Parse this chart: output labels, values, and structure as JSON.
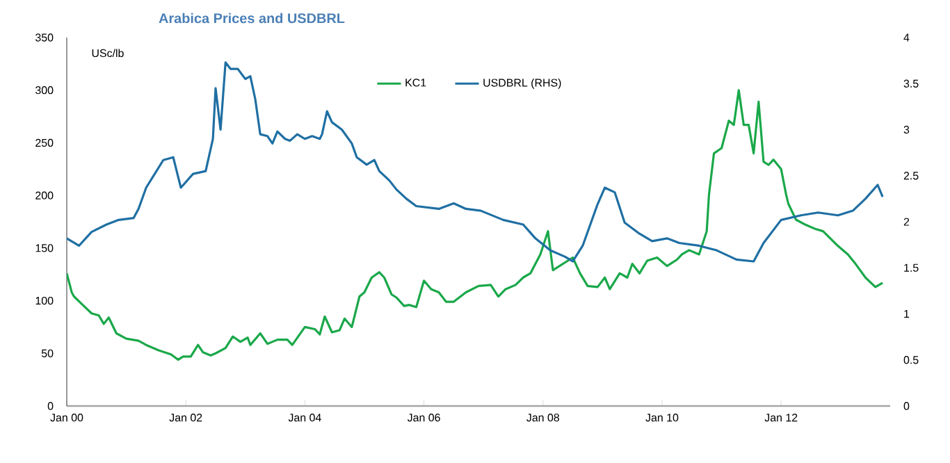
{
  "chart_data": {
    "type": "line",
    "title": "Arabica Prices and USDBRL",
    "ylabel": "USc/lb",
    "legend": "top",
    "xlim": [
      "2000-01-01",
      "2013-10-31"
    ],
    "xticks": [
      {
        "value": "2000-01",
        "label": "Jan 00"
      },
      {
        "value": "2002-01",
        "label": "Jan 02"
      },
      {
        "value": "2004-01",
        "label": "Jan 04"
      },
      {
        "value": "2006-01",
        "label": "Jan 06"
      },
      {
        "value": "2008-01",
        "label": "Jan 08"
      },
      {
        "value": "2010-01",
        "label": "Jan 10"
      },
      {
        "value": "2012-01",
        "label": "Jan 12"
      }
    ],
    "ylim": [
      0,
      350
    ],
    "yticks": [
      0,
      50,
      100,
      150,
      200,
      250,
      300,
      350
    ],
    "y2lim": [
      0,
      4
    ],
    "y2ticks": [
      0,
      0.5,
      1,
      1.5,
      2,
      2.5,
      3,
      3.5,
      4
    ],
    "series": [
      {
        "name": "KC1",
        "color": "#1aa84a",
        "x": [
          "2000-01-01",
          "2000-02-01",
          "2000-02-15",
          "2000-04-01",
          "2000-06-01",
          "2000-07-15",
          "2000-08-15",
          "2000-09-15",
          "2000-11-01",
          "2001-01-01",
          "2001-03-15",
          "2001-05-01",
          "2001-07-15",
          "2001-10-01",
          "2001-11-15",
          "2001-12-15",
          "2002-02-01",
          "2002-03-15",
          "2002-04-15",
          "2002-06-01",
          "2002-07-01",
          "2002-09-01",
          "2002-10-15",
          "2002-12-01",
          "2003-01-15",
          "2003-02-01",
          "2003-04-01",
          "2003-05-15",
          "2003-07-15",
          "2003-09-15",
          "2003-10-15",
          "2004-01-01",
          "2004-03-01",
          "2004-04-01",
          "2004-05-01",
          "2004-06-15",
          "2004-08-01",
          "2004-09-01",
          "2004-10-15",
          "2004-12-01",
          "2005-01-01",
          "2005-02-15",
          "2005-04-01",
          "2005-05-01",
          "2005-06-15",
          "2005-07-15",
          "2005-09-01",
          "2005-10-01",
          "2005-11-15",
          "2006-01-01",
          "2006-02-15",
          "2006-04-01",
          "2006-05-15",
          "2006-07-01",
          "2006-09-15",
          "2006-12-01",
          "2007-02-15",
          "2007-04-01",
          "2007-05-15",
          "2007-07-15",
          "2007-09-01",
          "2007-10-15",
          "2007-12-15",
          "2008-02-01",
          "2008-03-01",
          "2008-05-01",
          "2008-07-01",
          "2008-08-15",
          "2008-10-01",
          "2008-12-01",
          "2009-01-15",
          "2009-02-15",
          "2009-04-15",
          "2009-06-01",
          "2009-07-01",
          "2009-08-15",
          "2009-10-01",
          "2009-12-01",
          "2010-02-01",
          "2010-04-01",
          "2010-05-01",
          "2010-06-15",
          "2010-08-15",
          "2010-10-01",
          "2010-10-15",
          "2010-11-15",
          "2011-01-01",
          "2011-02-15",
          "2011-03-15",
          "2011-04-15",
          "2011-05-15",
          "2011-06-15",
          "2011-07-15",
          "2011-08-15",
          "2011-09-15",
          "2011-10-15",
          "2011-11-15",
          "2012-01-01",
          "2012-02-01",
          "2012-02-15",
          "2012-04-01",
          "2012-06-01",
          "2012-08-01",
          "2012-09-15",
          "2012-12-15",
          "2013-02-15",
          "2013-04-01",
          "2013-06-01",
          "2013-08-01",
          "2013-09-15"
        ],
        "values": [
          126,
          108,
          104,
          97,
          88,
          86,
          78,
          84,
          69,
          64,
          62,
          58,
          53,
          49,
          44,
          47,
          47,
          58,
          51,
          48,
          50,
          55,
          66,
          61,
          65,
          58,
          69,
          59,
          63,
          63,
          58,
          75,
          73,
          68,
          85,
          70,
          72,
          83,
          75,
          104,
          108,
          122,
          127,
          122,
          106,
          103,
          95,
          96,
          94,
          119,
          111,
          108,
          99,
          99,
          108,
          114,
          115,
          104,
          111,
          115,
          122,
          126,
          144,
          166,
          129,
          135,
          141,
          126,
          114,
          113,
          122,
          111,
          126,
          122,
          135,
          126,
          138,
          141,
          133,
          139,
          144,
          148,
          144,
          166,
          201,
          240,
          245,
          271,
          267,
          300,
          267,
          267,
          240,
          289,
          232,
          229,
          234,
          225,
          201,
          192,
          177,
          172,
          168,
          166,
          152,
          144,
          135,
          122,
          113,
          117
        ]
      },
      {
        "name": "USDBRL (RHS)",
        "color": "#1f6fa3",
        "axis": "y2",
        "x": [
          "2000-01-01",
          "2000-03-15",
          "2000-06-01",
          "2000-09-01",
          "2000-11-15",
          "2001-02-15",
          "2001-03-15",
          "2001-05-01",
          "2001-08-15",
          "2001-10-15",
          "2001-12-01",
          "2002-02-15",
          "2002-05-01",
          "2002-06-15",
          "2002-07-01",
          "2002-08-01",
          "2002-09-01",
          "2002-10-01",
          "2002-11-15",
          "2003-01-01",
          "2003-02-01",
          "2003-03-01",
          "2003-04-01",
          "2003-05-15",
          "2003-06-15",
          "2003-07-15",
          "2003-09-01",
          "2003-10-01",
          "2003-11-15",
          "2004-01-01",
          "2004-02-15",
          "2004-04-01",
          "2004-04-15",
          "2004-05-15",
          "2004-06-15",
          "2004-08-15",
          "2004-10-15",
          "2004-11-15",
          "2005-01-15",
          "2005-03-01",
          "2005-04-01",
          "2005-06-01",
          "2005-07-15",
          "2005-09-15",
          "2005-11-15",
          "2006-04-01",
          "2006-07-01",
          "2006-09-15",
          "2006-12-15",
          "2007-05-01",
          "2007-09-01",
          "2007-11-15",
          "2008-02-15",
          "2008-05-15",
          "2008-07-01",
          "2008-09-01",
          "2008-12-01",
          "2009-01-15",
          "2009-03-15",
          "2009-05-15",
          "2009-08-15",
          "2009-11-01",
          "2010-02-01",
          "2010-04-15",
          "2010-08-15",
          "2010-12-01",
          "2011-04-01",
          "2011-07-15",
          "2011-09-15",
          "2012-01-01",
          "2012-05-01",
          "2012-08-15",
          "2012-12-15",
          "2013-03-15",
          "2013-06-01",
          "2013-08-15",
          "2013-09-15"
        ],
        "values": [
          1.82,
          1.74,
          1.89,
          1.97,
          2.02,
          2.04,
          2.14,
          2.37,
          2.67,
          2.7,
          2.37,
          2.52,
          2.55,
          2.9,
          3.45,
          3.0,
          3.73,
          3.66,
          3.66,
          3.55,
          3.58,
          3.33,
          2.95,
          2.93,
          2.85,
          2.98,
          2.9,
          2.88,
          2.95,
          2.9,
          2.93,
          2.9,
          2.95,
          3.2,
          3.08,
          3.0,
          2.85,
          2.7,
          2.62,
          2.67,
          2.55,
          2.45,
          2.35,
          2.25,
          2.17,
          2.14,
          2.2,
          2.14,
          2.12,
          2.02,
          1.97,
          1.82,
          1.69,
          1.62,
          1.57,
          1.74,
          2.19,
          2.37,
          2.32,
          1.99,
          1.87,
          1.79,
          1.82,
          1.77,
          1.74,
          1.69,
          1.59,
          1.57,
          1.77,
          2.02,
          2.07,
          2.1,
          2.07,
          2.12,
          2.25,
          2.4,
          2.27
        ]
      }
    ]
  }
}
